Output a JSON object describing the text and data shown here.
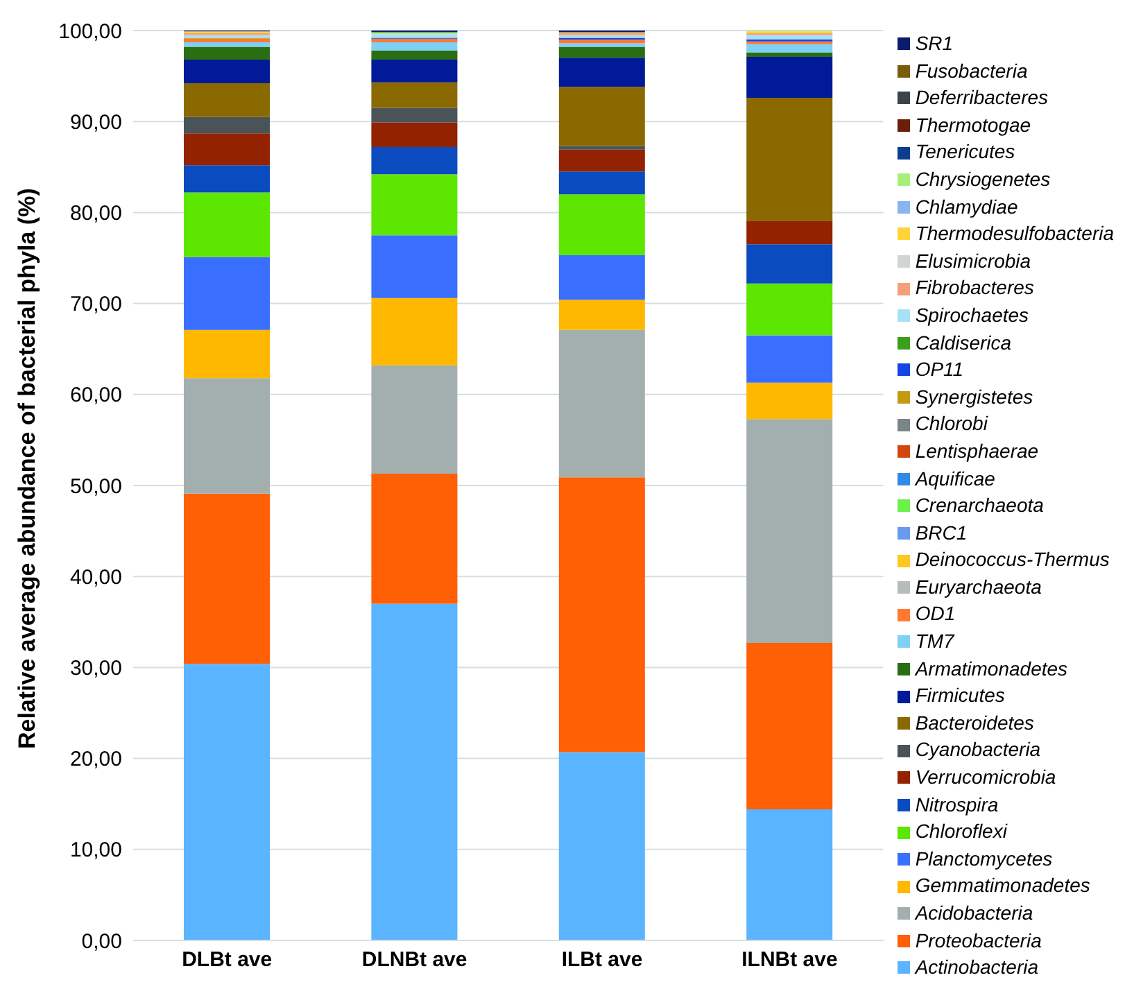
{
  "chart_data": {
    "type": "bar",
    "stacked": true,
    "ylabel": "Relative average abundance of bacterial phyla (%)",
    "categories": [
      "DLBt ave",
      "DLNBt ave",
      "ILBt ave",
      "ILNBt ave"
    ],
    "ylim": [
      0,
      100
    ],
    "yticks": [
      {
        "value": 0,
        "label": "0,00"
      },
      {
        "value": 10,
        "label": "10,00"
      },
      {
        "value": 20,
        "label": "20,00"
      },
      {
        "value": 30,
        "label": "30,00"
      },
      {
        "value": 40,
        "label": "40,00"
      },
      {
        "value": 50,
        "label": "50,00"
      },
      {
        "value": 60,
        "label": "60,00"
      },
      {
        "value": 70,
        "label": "70,00"
      },
      {
        "value": 80,
        "label": "80,00"
      },
      {
        "value": 90,
        "label": "90,00"
      },
      {
        "value": 100,
        "label": "100,00"
      }
    ],
    "grid": "y",
    "legend": "right",
    "series": [
      {
        "name": "Actinobacteria",
        "color": "#5ab4ff",
        "values": [
          30.4,
          37.0,
          20.7,
          14.4
        ]
      },
      {
        "name": "Proteobacteria",
        "color": "#ff5f05",
        "values": [
          18.7,
          14.3,
          30.2,
          18.3
        ]
      },
      {
        "name": "Acidobacteria",
        "color": "#a3afaf",
        "values": [
          12.7,
          11.9,
          16.2,
          24.6
        ]
      },
      {
        "name": "Gemmatimonadetes",
        "color": "#ffb800",
        "values": [
          5.3,
          7.4,
          3.3,
          4.0
        ]
      },
      {
        "name": "Planctomycetes",
        "color": "#3a6eff",
        "values": [
          8.0,
          6.9,
          4.9,
          5.2
        ]
      },
      {
        "name": "Chloroflexi",
        "color": "#5ce600",
        "values": [
          7.1,
          6.7,
          6.7,
          5.7
        ]
      },
      {
        "name": "Nitrospira",
        "color": "#0a4bbf",
        "values": [
          3.0,
          3.0,
          2.5,
          4.3
        ]
      },
      {
        "name": "Verrucomicrobia",
        "color": "#922200",
        "values": [
          3.5,
          2.7,
          2.4,
          2.6
        ]
      },
      {
        "name": "Cyanobacteria",
        "color": "#4a5458",
        "values": [
          1.8,
          1.6,
          0.4,
          0
        ]
      },
      {
        "name": "Bacteroidetes",
        "color": "#8a6a00",
        "values": [
          3.7,
          2.8,
          6.5,
          13.5
        ]
      },
      {
        "name": "Firmicutes",
        "color": "#001a99",
        "values": [
          2.6,
          2.5,
          3.2,
          4.5
        ]
      },
      {
        "name": "Armatimonadetes",
        "color": "#2a6e14",
        "values": [
          1.4,
          1.0,
          1.2,
          0.5
        ]
      },
      {
        "name": "TM7",
        "color": "#7fd0f5",
        "values": [
          0.5,
          0.9,
          0.4,
          0.9
        ]
      },
      {
        "name": "OD1",
        "color": "#ff7a30",
        "values": [
          0.4,
          0.4,
          0.4,
          0.3
        ]
      },
      {
        "name": "Euryarchaeota",
        "color": "#b4bcbc",
        "values": [
          0,
          0,
          0,
          0
        ]
      },
      {
        "name": "Deinococcus-Thermus",
        "color": "#ffc820",
        "values": [
          0,
          0,
          0,
          0
        ]
      },
      {
        "name": "BRC1",
        "color": "#6a9af0",
        "values": [
          0,
          0,
          0,
          0
        ]
      },
      {
        "name": "Crenarchaeota",
        "color": "#6ef04a",
        "values": [
          0,
          0,
          0,
          0
        ]
      },
      {
        "name": "Aquificae",
        "color": "#2f8be6",
        "values": [
          0,
          0,
          0,
          0
        ]
      },
      {
        "name": "Lentisphaerae",
        "color": "#d4460f",
        "values": [
          0,
          0,
          0,
          0
        ]
      },
      {
        "name": "Chlorobi",
        "color": "#7a8585",
        "values": [
          0,
          0,
          0,
          0
        ]
      },
      {
        "name": "Synergistetes",
        "color": "#c49a12",
        "values": [
          0.1,
          0,
          0,
          0
        ]
      },
      {
        "name": "OP11",
        "color": "#1446e6",
        "values": [
          0,
          0.1,
          0.2,
          0.2
        ]
      },
      {
        "name": "Caldiserica",
        "color": "#3c9e1a",
        "values": [
          0,
          0,
          0,
          0
        ]
      },
      {
        "name": "Spirochaetes",
        "color": "#a8e0f7",
        "values": [
          0.3,
          0.4,
          0.3,
          0.5
        ]
      },
      {
        "name": "Fibrobacteres",
        "color": "#f5a07a",
        "values": [
          0.2,
          0,
          0.2,
          0.2
        ]
      },
      {
        "name": "Elusimicrobia",
        "color": "#cfd4d4",
        "values": [
          0,
          0,
          0,
          0
        ]
      },
      {
        "name": "Thermodesulfobacteria",
        "color": "#ffd43b",
        "values": [
          0.2,
          0,
          0.1,
          0.2
        ]
      },
      {
        "name": "Chlamydiae",
        "color": "#8ab4f0",
        "values": [
          0,
          0,
          0,
          0
        ]
      },
      {
        "name": "Chrysiogenetes",
        "color": "#a6f07a",
        "values": [
          0,
          0.2,
          0,
          0.1
        ]
      },
      {
        "name": "Tenericutes",
        "color": "#0b3d91",
        "values": [
          0,
          0,
          0,
          0
        ]
      },
      {
        "name": "Thermotogae",
        "color": "#6b1e0a",
        "values": [
          0,
          0,
          0,
          0
        ]
      },
      {
        "name": "Deferribacteres",
        "color": "#3c4449",
        "values": [
          0,
          0,
          0,
          0
        ]
      },
      {
        "name": "Fusobacteria",
        "color": "#7a5c0a",
        "values": [
          0,
          0,
          0,
          0
        ]
      },
      {
        "name": "SR1",
        "color": "#0d1b6e",
        "values": [
          0.1,
          0.2,
          0.2,
          0
        ]
      }
    ]
  }
}
